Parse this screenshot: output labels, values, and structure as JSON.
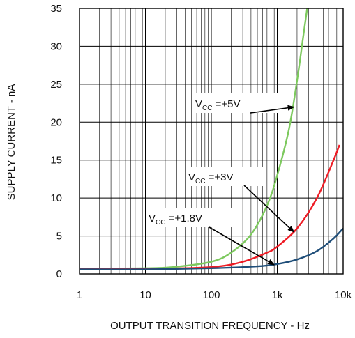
{
  "chart_data": {
    "type": "line",
    "title": "",
    "xlabel": "OUTPUT TRANSITION FREQUENCY - Hz",
    "ylabel": "SUPPLY CURRENT - nA",
    "x_scale": "log",
    "xlim": [
      1,
      10000
    ],
    "ylim": [
      0,
      35
    ],
    "x_ticks": [
      {
        "value": 1,
        "label": "1"
      },
      {
        "value": 10,
        "label": "10"
      },
      {
        "value": 100,
        "label": "100"
      },
      {
        "value": 1000,
        "label": "1k"
      },
      {
        "value": 10000,
        "label": "10k"
      }
    ],
    "y_ticks": [
      {
        "value": 0,
        "label": "0"
      },
      {
        "value": 5,
        "label": "5"
      },
      {
        "value": 10,
        "label": "10"
      },
      {
        "value": 15,
        "label": "15"
      },
      {
        "value": 20,
        "label": "20"
      },
      {
        "value": 25,
        "label": "25"
      },
      {
        "value": 30,
        "label": "30"
      },
      {
        "value": 35,
        "label": "35"
      }
    ],
    "grid": true,
    "legend": "none",
    "series": [
      {
        "color": "#7dc95e",
        "points": [
          [
            1,
            0.7
          ],
          [
            10,
            0.75
          ],
          [
            30,
            0.95
          ],
          [
            100,
            1.6
          ],
          [
            200,
            2.8
          ],
          [
            400,
            5.2
          ],
          [
            700,
            9.0
          ],
          [
            1000,
            13.0
          ],
          [
            1500,
            19.0
          ],
          [
            2000,
            25.5
          ],
          [
            2500,
            31.5
          ],
          [
            2900,
            35.5
          ]
        ]
      },
      {
        "color": "#ee1c25",
        "points": [
          [
            1,
            0.65
          ],
          [
            10,
            0.65
          ],
          [
            100,
            0.9
          ],
          [
            300,
            1.6
          ],
          [
            700,
            2.8
          ],
          [
            1000,
            3.6
          ],
          [
            2000,
            6.0
          ],
          [
            4000,
            10.0
          ],
          [
            7000,
            14.8
          ],
          [
            8800,
            17.0
          ]
        ]
      },
      {
        "color": "#1f4e79",
        "points": [
          [
            1,
            0.6
          ],
          [
            10,
            0.6
          ],
          [
            100,
            0.75
          ],
          [
            500,
            1.0
          ],
          [
            1000,
            1.3
          ],
          [
            2000,
            1.9
          ],
          [
            4000,
            3.0
          ],
          [
            7000,
            4.6
          ],
          [
            10000,
            6.0
          ]
        ]
      }
    ],
    "annotations": [
      {
        "main": "V",
        "sub": "CC",
        "rest": " =+5V",
        "target": [
          1800,
          22.0
        ]
      },
      {
        "main": "V",
        "sub": "CC",
        "rest": " =+3V",
        "target": [
          1800,
          5.5
        ]
      },
      {
        "main": "V",
        "sub": "CC",
        "rest": " =+1.8V",
        "target": [
          900,
          1.2
        ]
      }
    ]
  }
}
